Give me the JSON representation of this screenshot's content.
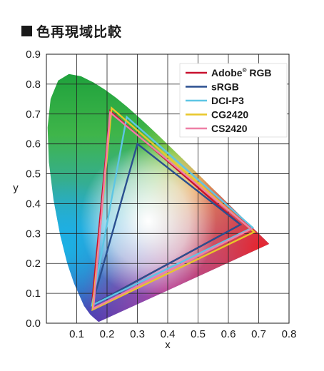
{
  "chart_data": {
    "type": "line",
    "title": "色再現域比較",
    "xlabel": "x",
    "ylabel": "y",
    "xlim": [
      0.0,
      0.8
    ],
    "ylim": [
      0.0,
      0.9
    ],
    "x_ticks": [
      "0.1",
      "0.2",
      "0.3",
      "0.4",
      "0.5",
      "0.6",
      "0.7",
      "0.8"
    ],
    "y_ticks": [
      "0.0",
      "0.1",
      "0.2",
      "0.3",
      "0.4",
      "0.5",
      "0.6",
      "0.7",
      "0.8",
      "0.9"
    ],
    "grid": true,
    "legend_position": "top-right",
    "spectral_locus": [
      [
        0.1741,
        0.005
      ],
      [
        0.1738,
        0.0049
      ],
      [
        0.1733,
        0.0048
      ],
      [
        0.1726,
        0.0048
      ],
      [
        0.1714,
        0.0051
      ],
      [
        0.1689,
        0.0069
      ],
      [
        0.1644,
        0.0109
      ],
      [
        0.1566,
        0.0177
      ],
      [
        0.144,
        0.0297
      ],
      [
        0.1241,
        0.0578
      ],
      [
        0.0913,
        0.1327
      ],
      [
        0.0687,
        0.2007
      ],
      [
        0.0454,
        0.295
      ],
      [
        0.0235,
        0.4127
      ],
      [
        0.0082,
        0.5384
      ],
      [
        0.0039,
        0.6548
      ],
      [
        0.0139,
        0.7502
      ],
      [
        0.0389,
        0.812
      ],
      [
        0.0743,
        0.8338
      ],
      [
        0.1142,
        0.8262
      ],
      [
        0.1547,
        0.8059
      ],
      [
        0.1929,
        0.7816
      ],
      [
        0.2296,
        0.7543
      ],
      [
        0.2658,
        0.7243
      ],
      [
        0.3016,
        0.6923
      ],
      [
        0.3373,
        0.6589
      ],
      [
        0.3731,
        0.6245
      ],
      [
        0.4087,
        0.5896
      ],
      [
        0.4441,
        0.5547
      ],
      [
        0.4788,
        0.5202
      ],
      [
        0.5125,
        0.4866
      ],
      [
        0.5448,
        0.4544
      ],
      [
        0.5752,
        0.4242
      ],
      [
        0.6029,
        0.3965
      ],
      [
        0.627,
        0.3725
      ],
      [
        0.6482,
        0.3514
      ],
      [
        0.6658,
        0.334
      ],
      [
        0.6801,
        0.3197
      ],
      [
        0.6915,
        0.3083
      ],
      [
        0.7006,
        0.2993
      ],
      [
        0.7079,
        0.292
      ],
      [
        0.714,
        0.2859
      ],
      [
        0.719,
        0.2809
      ],
      [
        0.723,
        0.277
      ],
      [
        0.726,
        0.274
      ],
      [
        0.7347,
        0.2653
      ]
    ],
    "series": [
      {
        "name": "Adobe® RGB",
        "color": "#c8102e",
        "points": [
          [
            0.64,
            0.33
          ],
          [
            0.21,
            0.71
          ],
          [
            0.15,
            0.06
          ]
        ]
      },
      {
        "name": "sRGB",
        "color": "#2a4f8f",
        "points": [
          [
            0.64,
            0.33
          ],
          [
            0.3,
            0.6
          ],
          [
            0.15,
            0.06
          ]
        ]
      },
      {
        "name": "DCI-P3",
        "color": "#5ec6e4",
        "points": [
          [
            0.68,
            0.32
          ],
          [
            0.265,
            0.69
          ],
          [
            0.15,
            0.06
          ]
        ]
      },
      {
        "name": "CG2420",
        "color": "#e8c72a",
        "points": [
          [
            0.685,
            0.305
          ],
          [
            0.215,
            0.72
          ],
          [
            0.152,
            0.045
          ]
        ]
      },
      {
        "name": "CS2420",
        "color": "#ee7fa6",
        "points": [
          [
            0.675,
            0.315
          ],
          [
            0.21,
            0.705
          ],
          [
            0.155,
            0.05
          ]
        ]
      }
    ],
    "legend": [
      {
        "label": "Adobe",
        "sup": "®",
        "suffix": " RGB"
      },
      {
        "label": "sRGB",
        "sup": "",
        "suffix": ""
      },
      {
        "label": "DCI-P3",
        "sup": "",
        "suffix": ""
      },
      {
        "label": "CG2420",
        "sup": "",
        "suffix": ""
      },
      {
        "label": "CS2420",
        "sup": "",
        "suffix": ""
      }
    ]
  }
}
